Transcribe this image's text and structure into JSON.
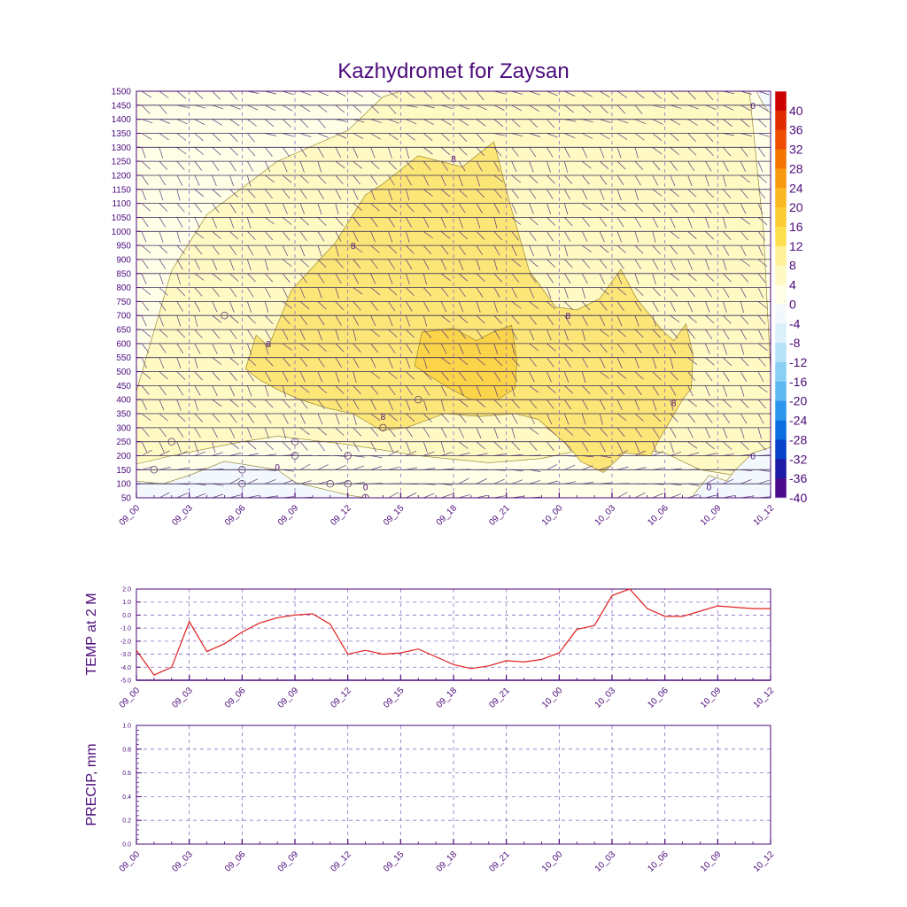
{
  "colors": {
    "frame": "#4b0a7a",
    "grid": "#8a6cc0",
    "temp_line": "#e02020",
    "contour_line": "#8a7a20"
  },
  "chart_data": [
    {
      "type": "heatmap",
      "title": "Kazhydromet for Zaysan",
      "x_tick_labels": [
        "09_00",
        "09_03",
        "09_06",
        "09_09",
        "09_12",
        "09_15",
        "09_18",
        "09_21",
        "10_00",
        "10_03",
        "10_06",
        "10_09",
        "10_12"
      ],
      "y_tick_labels": [
        50,
        100,
        150,
        200,
        250,
        300,
        350,
        400,
        450,
        500,
        550,
        600,
        650,
        700,
        750,
        800,
        850,
        900,
        950,
        1000,
        1050,
        1100,
        1150,
        1200,
        1250,
        1300,
        1350,
        1400,
        1450,
        1500
      ],
      "ylim": [
        50,
        1500
      ],
      "x_range_hours": [
        0,
        36
      ],
      "colorbar_labels": [
        "40",
        "36",
        "32",
        "28",
        "24",
        "20",
        "16",
        "12",
        "8",
        "4",
        "0",
        "-4",
        "-8",
        "-12",
        "-16",
        "-20",
        "-24",
        "-28",
        "-32",
        "-36",
        "-40"
      ],
      "colorbar_colors": [
        "#cc0000",
        "#e02a00",
        "#ee4c00",
        "#f47600",
        "#f89a10",
        "#fab822",
        "#fbcc36",
        "#fde050",
        "#fff09a",
        "#fffac4",
        "#ffffe8",
        "#f3f8fc",
        "#dcf0fa",
        "#b8e2f8",
        "#8ad0f4",
        "#5eb8f0",
        "#2c96ec",
        "#0c6ee0",
        "#0842c8",
        "#1e1aa6",
        "#4a0a8c"
      ],
      "regions": [
        {
          "label_value": "4",
          "fill": "#fffac4",
          "points": [
            [
              0,
              430
            ],
            [
              2,
              860
            ],
            [
              4,
              1060
            ],
            [
              8,
              1250
            ],
            [
              12,
              1360
            ],
            [
              14,
              1480
            ],
            [
              15,
              1500
            ],
            [
              34.8,
              1500
            ],
            [
              35.6,
              1000
            ],
            [
              36,
              500
            ],
            [
              36,
              120
            ],
            [
              34,
              130
            ],
            [
              32,
              150
            ],
            [
              30,
              210
            ],
            [
              28,
              230
            ],
            [
              26,
              230
            ],
            [
              23,
              190
            ],
            [
              20,
              175
            ],
            [
              16,
              200
            ],
            [
              12,
              240
            ],
            [
              8,
              270
            ],
            [
              6,
              250
            ],
            [
              2,
              200
            ],
            [
              0,
              170
            ]
          ]
        },
        {
          "label_value": "8",
          "fill": "#fde678",
          "points": [
            [
              6.2,
              510
            ],
            [
              6.8,
              630
            ],
            [
              7.5,
              590
            ],
            [
              8.8,
              790
            ],
            [
              11.3,
              960
            ],
            [
              13,
              1130
            ],
            [
              14,
              1170
            ],
            [
              16,
              1270
            ],
            [
              18.5,
              1230
            ],
            [
              20.3,
              1320
            ],
            [
              21.2,
              1100
            ],
            [
              22.3,
              860
            ],
            [
              23.8,
              730
            ],
            [
              25,
              720
            ],
            [
              26.3,
              760
            ],
            [
              27.5,
              865
            ],
            [
              28.4,
              760
            ],
            [
              29.3,
              690
            ],
            [
              29.8,
              650
            ],
            [
              30.5,
              610
            ],
            [
              31.2,
              670
            ],
            [
              31.6,
              560
            ],
            [
              31.5,
              440
            ],
            [
              31,
              400
            ],
            [
              29.6,
              250
            ],
            [
              29.2,
              200
            ],
            [
              27.7,
              210
            ],
            [
              26.5,
              140
            ],
            [
              25.2,
              180
            ],
            [
              24.6,
              230
            ],
            [
              22.8,
              330
            ],
            [
              21.5,
              350
            ],
            [
              19.5,
              340
            ],
            [
              17.5,
              350
            ],
            [
              15.3,
              300
            ],
            [
              13.9,
              290
            ],
            [
              12.3,
              350
            ],
            [
              10.8,
              370
            ],
            [
              9.3,
              400
            ],
            [
              8.2,
              430
            ],
            [
              7,
              470
            ]
          ]
        },
        {
          "label_value": "12",
          "fill": "#fbd44a",
          "points": [
            [
              15.8,
              520
            ],
            [
              16.2,
              640
            ],
            [
              18,
              655
            ],
            [
              19.3,
              610
            ],
            [
              20.2,
              640
            ],
            [
              21.3,
              665
            ],
            [
              21.6,
              540
            ],
            [
              21.5,
              440
            ],
            [
              20.5,
              400
            ],
            [
              19,
              400
            ],
            [
              17.5,
              450
            ]
          ]
        }
      ],
      "contour_labels": [
        {
          "x": 7.5,
          "y": 600,
          "text": "8"
        },
        {
          "x": 12.3,
          "y": 950,
          "text": "8"
        },
        {
          "x": 18,
          "y": 1260,
          "text": "8"
        },
        {
          "x": 24.5,
          "y": 700,
          "text": "8"
        },
        {
          "x": 14,
          "y": 340,
          "text": "8"
        },
        {
          "x": 30.5,
          "y": 390,
          "text": "8"
        },
        {
          "x": 8,
          "y": 160,
          "text": "0"
        },
        {
          "x": 13,
          "y": 90,
          "text": "0"
        },
        {
          "x": 35,
          "y": 200,
          "text": "0"
        },
        {
          "x": 35,
          "y": 1450,
          "text": "0"
        },
        {
          "x": 32.5,
          "y": 90,
          "text": "0"
        }
      ],
      "calm_markers": [
        [
          5,
          700
        ],
        [
          2,
          250
        ],
        [
          1,
          150
        ],
        [
          9,
          250
        ],
        [
          9,
          200
        ],
        [
          6,
          150
        ],
        [
          6,
          100
        ],
        [
          12,
          200
        ],
        [
          11,
          100
        ],
        [
          12,
          100
        ],
        [
          14,
          300
        ],
        [
          16,
          400
        ],
        [
          13,
          50
        ]
      ]
    },
    {
      "type": "line",
      "ylabel": "TEMP at 2 M",
      "x_tick_labels": [
        "09_00",
        "09_03",
        "09_06",
        "09_09",
        "09_12",
        "09_15",
        "09_18",
        "09_21",
        "10_00",
        "10_03",
        "10_06",
        "10_09",
        "10_12"
      ],
      "y_tick_labels": [
        "2.0",
        "1.0",
        "0.0",
        "-1.0",
        "-2.0",
        "-3.0",
        "-4.0",
        "-5.0"
      ],
      "ylim": [
        -5,
        2
      ],
      "x": [
        0,
        1,
        2,
        3,
        4,
        5,
        6,
        7,
        8,
        9,
        10,
        11,
        12,
        13,
        14,
        15,
        16,
        17,
        18,
        19,
        20,
        21,
        22,
        23,
        24,
        25,
        26,
        27,
        28,
        29,
        30,
        31,
        32,
        33,
        34,
        35,
        36
      ],
      "values": [
        -2.7,
        -4.6,
        -4.0,
        -0.5,
        -2.8,
        -2.2,
        -1.3,
        -0.6,
        -0.2,
        0.0,
        0.1,
        -0.7,
        -3.0,
        -2.7,
        -3.0,
        -2.9,
        -2.6,
        -3.2,
        -3.8,
        -4.1,
        -3.9,
        -3.5,
        -3.6,
        -3.4,
        -2.9,
        -1.1,
        -0.8,
        1.5,
        2.0,
        0.5,
        -0.1,
        -0.1,
        0.3,
        0.7,
        0.6,
        0.5,
        0.5
      ]
    },
    {
      "type": "line",
      "ylabel": "PRECIP, mm",
      "x_tick_labels": [
        "09_00",
        "09_03",
        "09_06",
        "09_09",
        "09_12",
        "09_15",
        "09_18",
        "09_21",
        "10_00",
        "10_03",
        "10_06",
        "10_09",
        "10_12"
      ],
      "y_tick_labels": [
        "1.0",
        "0.8",
        "0.6",
        "0.4",
        "0.2",
        "0.0"
      ],
      "ylim": [
        0,
        1
      ],
      "values": []
    }
  ]
}
